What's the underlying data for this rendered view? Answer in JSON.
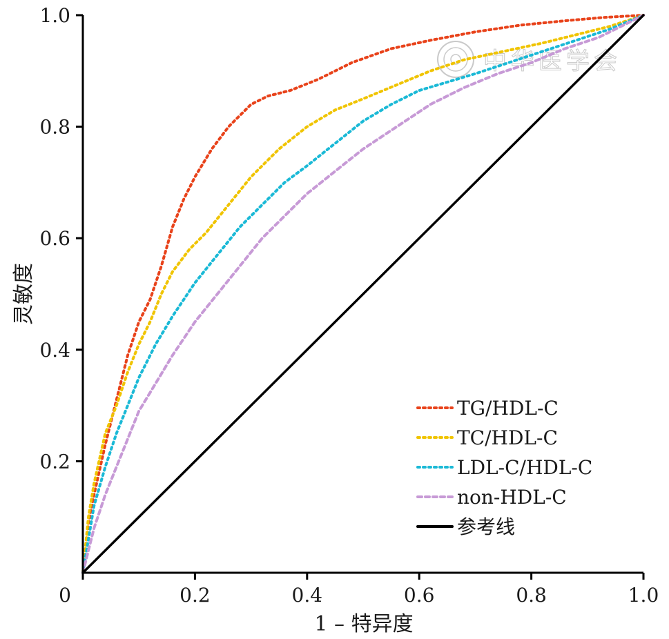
{
  "chart_data": {
    "type": "line",
    "title": "",
    "xlabel": "1 – 特异度",
    "ylabel": "灵敏度",
    "xlim": [
      0,
      1
    ],
    "ylim": [
      0,
      1
    ],
    "x_ticks": [
      {
        "value": 0,
        "label": "0"
      },
      {
        "value": 0.2,
        "label": "0.2"
      },
      {
        "value": 0.4,
        "label": "0.4"
      },
      {
        "value": 0.6,
        "label": "0.6"
      },
      {
        "value": 0.8,
        "label": "0.8"
      },
      {
        "value": 1.0,
        "label": "1.0"
      }
    ],
    "y_ticks": [
      {
        "value": 0.2,
        "label": "0.2"
      },
      {
        "value": 0.4,
        "label": "0.4"
      },
      {
        "value": 0.6,
        "label": "0.6"
      },
      {
        "value": 0.8,
        "label": "0.8"
      },
      {
        "value": 1.0,
        "label": "1.0"
      }
    ],
    "grid": false,
    "legend_position": "bottom-right",
    "series": [
      {
        "name": "TG/HDL-C",
        "color": "#e8421a",
        "style": "dotted",
        "x": [
          0,
          0.01,
          0.02,
          0.04,
          0.06,
          0.08,
          0.1,
          0.12,
          0.14,
          0.16,
          0.18,
          0.2,
          0.23,
          0.26,
          0.3,
          0.33,
          0.37,
          0.42,
          0.48,
          0.55,
          0.62,
          0.7,
          0.78,
          0.86,
          0.93,
          1.0
        ],
        "y": [
          0,
          0.09,
          0.14,
          0.23,
          0.31,
          0.39,
          0.45,
          0.49,
          0.55,
          0.62,
          0.67,
          0.71,
          0.76,
          0.8,
          0.84,
          0.855,
          0.865,
          0.885,
          0.915,
          0.94,
          0.955,
          0.97,
          0.982,
          0.99,
          0.996,
          1.0
        ]
      },
      {
        "name": "TC/HDL-C",
        "color": "#f0c400",
        "style": "dotted",
        "x": [
          0,
          0.01,
          0.02,
          0.04,
          0.06,
          0.08,
          0.1,
          0.12,
          0.14,
          0.16,
          0.19,
          0.22,
          0.26,
          0.3,
          0.35,
          0.4,
          0.45,
          0.5,
          0.56,
          0.62,
          0.68,
          0.75,
          0.82,
          0.88,
          0.94,
          1.0
        ],
        "y": [
          0,
          0.1,
          0.16,
          0.25,
          0.3,
          0.36,
          0.41,
          0.45,
          0.5,
          0.54,
          0.58,
          0.61,
          0.66,
          0.71,
          0.76,
          0.8,
          0.83,
          0.85,
          0.875,
          0.9,
          0.92,
          0.935,
          0.95,
          0.965,
          0.98,
          1.0
        ]
      },
      {
        "name": "LDL-C/HDL-C",
        "color": "#1ab9d6",
        "style": "dotted",
        "x": [
          0,
          0.01,
          0.02,
          0.04,
          0.06,
          0.08,
          0.1,
          0.13,
          0.16,
          0.2,
          0.24,
          0.28,
          0.32,
          0.36,
          0.4,
          0.45,
          0.5,
          0.55,
          0.6,
          0.65,
          0.7,
          0.76,
          0.82,
          0.88,
          0.94,
          1.0
        ],
        "y": [
          0,
          0.06,
          0.12,
          0.19,
          0.25,
          0.3,
          0.35,
          0.41,
          0.46,
          0.52,
          0.57,
          0.62,
          0.66,
          0.7,
          0.73,
          0.77,
          0.81,
          0.84,
          0.865,
          0.88,
          0.895,
          0.915,
          0.935,
          0.955,
          0.975,
          1.0
        ]
      },
      {
        "name": "non-HDL-C",
        "color": "#c79ad6",
        "style": "dashed",
        "x": [
          0,
          0.01,
          0.02,
          0.04,
          0.06,
          0.08,
          0.1,
          0.13,
          0.16,
          0.2,
          0.24,
          0.28,
          0.32,
          0.36,
          0.4,
          0.45,
          0.5,
          0.56,
          0.62,
          0.68,
          0.74,
          0.8,
          0.86,
          0.92,
          0.96,
          1.0
        ],
        "y": [
          0,
          0.04,
          0.08,
          0.14,
          0.19,
          0.24,
          0.29,
          0.34,
          0.39,
          0.45,
          0.5,
          0.55,
          0.6,
          0.64,
          0.68,
          0.72,
          0.76,
          0.8,
          0.84,
          0.87,
          0.895,
          0.915,
          0.94,
          0.96,
          0.98,
          1.0
        ]
      },
      {
        "name": "参考线",
        "color": "#000000",
        "style": "solid",
        "x": [
          0,
          1
        ],
        "y": [
          0,
          1
        ]
      }
    ]
  },
  "watermark": {
    "text": "中华医学会",
    "color": "#c9c9c9"
  }
}
